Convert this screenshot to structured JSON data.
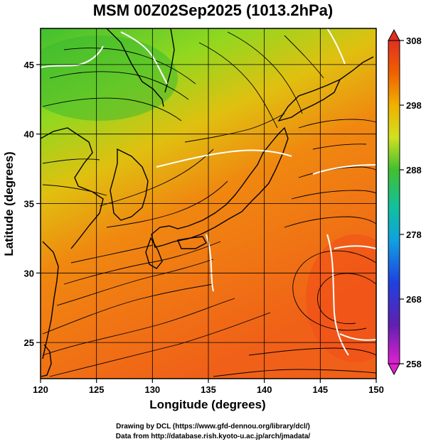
{
  "title": "MSM 00Z02Sep2025 (1013.2hPa)",
  "map": {
    "xlabel": "Longitude (degrees)",
    "ylabel": "Latitude  (degrees)",
    "xlim": [
      120,
      150
    ],
    "ylim": [
      22.4,
      47.6
    ],
    "xticks": [
      "120",
      "125",
      "130",
      "135",
      "140",
      "145",
      "150"
    ],
    "yticks": [
      "25",
      "30",
      "35",
      "40",
      "45"
    ],
    "grid": true
  },
  "colorbar": {
    "ticks": [
      "308",
      "298",
      "288",
      "278",
      "268",
      "258"
    ],
    "min": 258,
    "max": 308,
    "colors": [
      "#e020d0",
      "#5020c0",
      "#2040e0",
      "#10a0e0",
      "#10c0b0",
      "#10c040",
      "#60d020",
      "#c0e020",
      "#f0d000",
      "#f0a000",
      "#f06000",
      "#f03020"
    ]
  },
  "credits": {
    "line1": "Drawing by DCL (https://www.gfd-dennou.org/library/dcl/)",
    "line2": "Data from http://database.rish.kyoto-u.ac.jp/arch/jmadata/"
  }
}
